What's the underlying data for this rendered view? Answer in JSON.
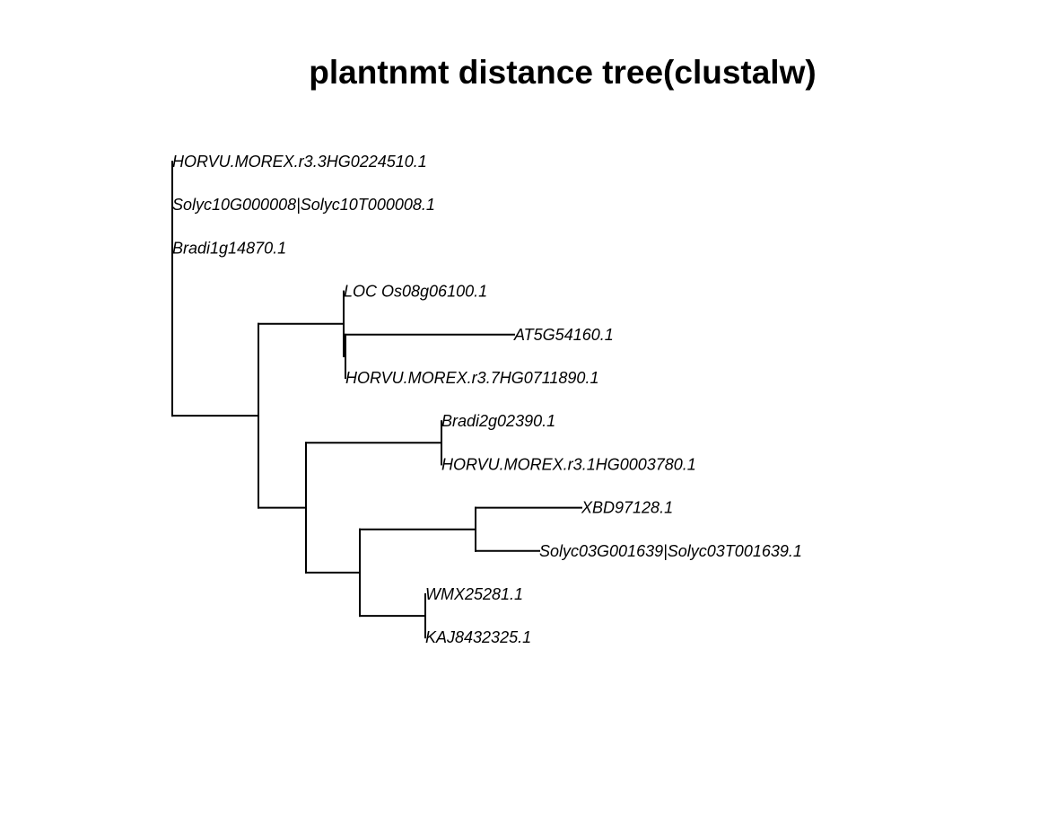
{
  "title": "plantnmt distance tree(clustalw)",
  "tree": {
    "children": [
      {
        "label": "HORVU.MOREX.r3.3HG0224510.1",
        "length": 0
      },
      {
        "label": "Solyc10G000008|Solyc10T000008.1",
        "length": 0
      },
      {
        "label": "Bradi1g14870.1",
        "length": 0
      },
      {
        "length": 0.96,
        "children": [
          {
            "length": 0.95,
            "children": [
              {
                "label": "LOC Os08g06100.1",
                "length": 0
              },
              {
                "length": 0.02,
                "children": [
                  {
                    "label": "AT5G54160.1",
                    "length": 1.88
                  },
                  {
                    "label": "HORVU.MOREX.r3.7HG0711890.1",
                    "length": 0
                  }
                ]
              }
            ]
          },
          {
            "length": 0.53,
            "children": [
              {
                "length": 1.51,
                "children": [
                  {
                    "label": "Bradi2g02390.1",
                    "length": 0
                  },
                  {
                    "label": "HORVU.MOREX.r3.1HG0003780.1",
                    "length": 0
                  }
                ]
              },
              {
                "length": 0.6,
                "children": [
                  {
                    "length": 1.29,
                    "children": [
                      {
                        "label": "XBD97128.1",
                        "length": 1.18
                      },
                      {
                        "label": "Solyc03G001639|Solyc03T001639.1",
                        "length": 0.71
                      }
                    ]
                  },
                  {
                    "length": 0.73,
                    "children": [
                      {
                        "label": "WMX25281.1",
                        "length": 0
                      },
                      {
                        "label": "KAJ8432325.1",
                        "length": 0
                      }
                    ]
                  }
                ]
              }
            ]
          }
        ]
      }
    ]
  },
  "colors": {
    "line": "#000000",
    "text": "#000000",
    "background": "#ffffff"
  }
}
